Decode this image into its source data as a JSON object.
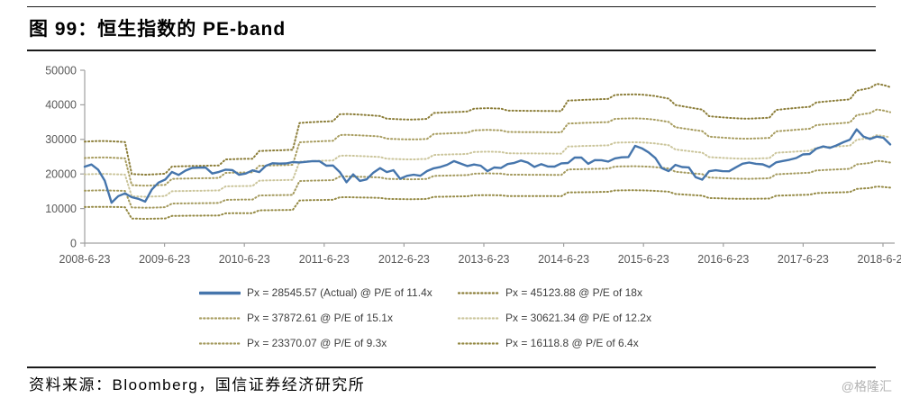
{
  "figure": {
    "title": "图 99：恒生指数的 PE-band",
    "source": "资料来源：Bloomberg，国信证券经济研究所",
    "watermark": "@格隆汇"
  },
  "chart_data": {
    "type": "line",
    "title": "恒生指数的 PE-band",
    "xlabel": "",
    "ylabel": "",
    "ylim": [
      0,
      50000
    ],
    "y_ticks": [
      0,
      10000,
      20000,
      30000,
      40000,
      50000
    ],
    "x_tick_labels": [
      "2008-6-23",
      "2009-6-23",
      "2010-6-23",
      "2011-6-23",
      "2012-6-23",
      "2013-6-23",
      "2014-6-23",
      "2015-6-23",
      "2016-6-23",
      "2017-6-23",
      "2018-6-23"
    ],
    "x_frequency": "monthly",
    "x_start": "2008-06",
    "x_end": "2018-06",
    "grid": false,
    "legend_position": "bottom",
    "axis_color": "#a0a0a0",
    "tick_label_color": "#595959",
    "series": [
      {
        "name": "Px = 28545.57 (Actual) @ P/E of 11.4x",
        "style": "solid",
        "color": "#4575ac",
        "values": [
          22102,
          22731,
          21262,
          18016,
          11700,
          13600,
          14387,
          13278,
          12812,
          12000,
          15521,
          17500,
          18378,
          20573,
          19724,
          20955,
          21753,
          21822,
          21873,
          20122,
          20608,
          21239,
          21109,
          19765,
          20129,
          21030,
          20537,
          22358,
          23096,
          23007,
          23035,
          23447,
          23338,
          23528,
          23721,
          23684,
          22398,
          22440,
          20535,
          17592,
          19865,
          17989,
          18434,
          20390,
          21680,
          20556,
          21095,
          18629,
          19441,
          19796,
          19483,
          20840,
          21641,
          22030,
          22657,
          23730,
          23020,
          22300,
          22737,
          22392,
          20803,
          21884,
          21731,
          22860,
          23206,
          23881,
          23306,
          22035,
          22837,
          22151,
          22134,
          23082,
          23190,
          24757,
          24742,
          22933,
          23998,
          23987,
          23605,
          24507,
          24823,
          24901,
          28133,
          27424,
          26250,
          24636,
          21671,
          20846,
          22640,
          21996,
          21914,
          19100,
          18350,
          20777,
          21067,
          20815,
          20794,
          21891,
          22977,
          23297,
          22935,
          22790,
          22001,
          23361,
          23741,
          24112,
          24615,
          25661,
          25765,
          27324,
          27970,
          27554,
          28246,
          29177,
          29919,
          32887,
          30845,
          30093,
          30808,
          30469,
          28545.57
        ]
      },
      {
        "name": "Px = 45123.88 @ P/E of 18x",
        "style": "dotted",
        "color": "#8b7d38",
        "pe": 18
      },
      {
        "name": "Px = 37872.61 @ P/E of 15.1x",
        "style": "dotted",
        "color": "#a89d60",
        "pe": 15.1
      },
      {
        "name": "Px = 30621.34 @ P/E of 12.2x",
        "style": "dotted",
        "color": "#cbc59b",
        "pe": 12.2
      },
      {
        "name": "Px = 23370.07 @ P/E of 9.3x",
        "style": "dotted",
        "color": "#a49a5e",
        "pe": 9.3
      },
      {
        "name": "Px = 16118.8 @ P/E of 6.4x",
        "style": "dotted",
        "color": "#958a45",
        "pe": 6.4
      }
    ],
    "eps_monthly": [
      1630,
      1636,
      1640,
      1641,
      1636,
      1630,
      1625,
      1110,
      1105,
      1100,
      1104,
      1110,
      1116,
      1230,
      1234,
      1236,
      1240,
      1241,
      1244,
      1246,
      1248,
      1345,
      1349,
      1352,
      1354,
      1356,
      1480,
      1485,
      1489,
      1492,
      1496,
      1500,
      1930,
      1938,
      1944,
      1950,
      1955,
      1960,
      2070,
      2074,
      2070,
      2064,
      2058,
      2050,
      2042,
      2000,
      1995,
      1990,
      1986,
      1986,
      1991,
      1996,
      2090,
      2096,
      2101,
      2106,
      2110,
      2115,
      2160,
      2165,
      2169,
      2165,
      2161,
      2130,
      2128,
      2127,
      2126,
      2125,
      2124,
      2123,
      2122,
      2121,
      2290,
      2295,
      2300,
      2305,
      2309,
      2314,
      2318,
      2380,
      2385,
      2389,
      2390,
      2386,
      2376,
      2362,
      2342,
      2322,
      2220,
      2201,
      2182,
      2163,
      2145,
      2040,
      2030,
      2021,
      2012,
      2006,
      2001,
      2000,
      2005,
      2010,
      2016,
      2140,
      2151,
      2161,
      2171,
      2181,
      2191,
      2260,
      2271,
      2281,
      2291,
      2301,
      2311,
      2450,
      2471,
      2491,
      2560,
      2540,
      2507
    ],
    "band_rule": "band_value[i] = eps_monthly[i] * pe"
  }
}
